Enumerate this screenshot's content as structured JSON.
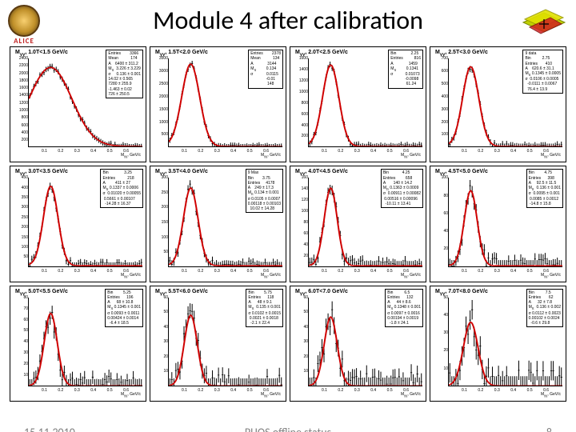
{
  "title": "Module 4 after calibration",
  "footer": {
    "date": "15.11.2010",
    "center": "PHOS offline status",
    "page": "8"
  },
  "logos": {
    "alice_label": "ALICE"
  },
  "chart_common": {
    "xlabel": "M_{γγ}, GeV/c",
    "xlim": [
      0,
      0.7
    ],
    "xticks": [
      0.1,
      0.2,
      0.3,
      0.4,
      0.5,
      0.6
    ],
    "line_color": "#d00000",
    "line_width": 1.4,
    "data_color": "#000000",
    "background": "#ffffff",
    "title_fontsize": 7,
    "tick_fontsize": 5,
    "peak_x": 0.135
  },
  "panels": [
    {
      "title": "M_{γγ}, 1.0<p_T<1.5 GeV/c",
      "ylim": [
        0,
        2400
      ],
      "ystep": 200,
      "peak_h": 0.88,
      "peak_w": 0.13,
      "tail": 0.03,
      "noise": 0.02,
      "stats": "Entries        3366\\nMean           174\\nA    6400 ± 311.2\\nM_{π}  3.226 ± 3.229\\nσ     0.136 ± 0.001\\n14.02 ± 0.565\\n7280 ± 255.9\\n-1.463 ± 0.02\\n726 ± 250.5"
    },
    {
      "title": "M_{γγ}, 1.5<p_T<2.0 GeV/c",
      "ylim": [
        0,
        3500
      ],
      "ystep": 500,
      "peak_h": 0.93,
      "peak_w": 0.055,
      "tail": 0.01,
      "noise": 0.02,
      "stats": "Entries        2378\\nMean           134\\nA             3144\\nM_{π}         0.134\\nσ            0.0115\\n              -0.01\\n               148"
    },
    {
      "title": "M_{γγ}, 2.0<p_T<2.5 GeV/c",
      "ylim": [
        0,
        1600
      ],
      "ystep": 200,
      "peak_h": 0.92,
      "peak_w": 0.05,
      "tail": 0.01,
      "noise": 0.025,
      "stats": "Bin             2.25\\nEntries          816\\nA              1459\\nM_{π}         0.1341\\nσ           0.01073\\n             -0.0098\\n              61.24"
    },
    {
      "title": "M_{γγ}, 2.5<p_T<3.0 GeV/c",
      "ylim": [
        0,
        700
      ],
      "ystep": 100,
      "peak_h": 0.9,
      "peak_w": 0.05,
      "tail": 0.01,
      "noise": 0.03,
      "stats": "9 data\\nBin          2.75\\nEntries       410\\nA    620.6 ± 31.1\\nM_{π} 0.1345 ± 0.0005\\nσ  0.0106 ± 0.0005\\n  -0.0111 ± 0.0067\\n  76.4 ± 13.9"
    },
    {
      "title": "M_{γγ}, 3.0<p_T<3.5 GeV/c",
      "ylim": [
        0,
        450
      ],
      "ystep": 50,
      "peak_h": 0.9,
      "peak_w": 0.045,
      "tail": 0.005,
      "noise": 0.04,
      "stats": "Bin              3.25\\nEntries           218\\nA         411 ± 27\\nM_{π} 0.1337 ± 0.0006\\nσ  0.01020 ± 0.00055\\n 0.5661 ± 0.00107\\n  -14.28 ± 16.37"
    },
    {
      "title": "M_{γγ}, 3.5<p_T<4.0 GeV/c",
      "ylim": [
        0,
        300
      ],
      "ystep": 50,
      "peak_h": 0.88,
      "peak_w": 0.045,
      "tail": 0.005,
      "noise": 0.05,
      "stats": "9 Max\\nBin        3.75\\nEntries     4178\\nA    249 ± 17.3\\nM_{π} 0.134 ± 0.001\\nσ 0.0105 ± 0.0007\\n0.00118 ± 0.00103\\n  10.02 ± 14.28"
    },
    {
      "title": "M_{γγ}, 4.0<p_T<4.5 GeV/c",
      "ylim": [
        0,
        160
      ],
      "ystep": 20,
      "peak_h": 0.88,
      "peak_w": 0.04,
      "tail": 0.003,
      "noise": 0.07,
      "stats": "Bin            4.25\\nEntries         658\\nA       140 ± 14.2\\nM_{π} 0.1363 ± 0.0009\\nσ  0.00911 ± 0.00082\\n 0.00516 ± 0.00096\\n  -10.11 ± 13.41"
    },
    {
      "title": "M_{γγ}, 4.5<p_T<5.0 GeV/c",
      "ylim": [
        0,
        100
      ],
      "ystep": 20,
      "peak_h": 0.85,
      "peak_w": 0.04,
      "tail": 0.003,
      "noise": 0.09,
      "stats": "Bin         4.75\\nEntries      398\\nA     92.5 ± 11.5\\nM_{π}  0.136 ± 0.001\\nσ  0.0095 ± 0.001\\n 0.0085 ± 0.0012\\n -14.8 ± 15.8"
    },
    {
      "title": "M_{γγ}, 5.0<p_T<5.5 GeV/c",
      "ylim": [
        0,
        80
      ],
      "ystep": 10,
      "peak_h": 0.82,
      "peak_w": 0.04,
      "tail": 0.002,
      "noise": 0.11,
      "stats": "Bin         5.25\\nEntries      196\\nA      68 ± 10.8\\nM_{π} 0.1345 ± 0.001\\nσ 0.0093 ± 0.0011\\n0.00424 ± 0.0014\\n  -6.4 ± 18.5"
    },
    {
      "title": "M_{γγ}, 5.5<p_T<6.0 GeV/c",
      "ylim": [
        0,
        60
      ],
      "ystep": 10,
      "peak_h": 0.8,
      "peak_w": 0.04,
      "tail": 0.002,
      "noise": 0.13,
      "stats": "Bin         5.75\\nEntries      118\\nA      48 ± 9.1\\nM_{π}  0.135 ± 0.001\\nσ 0.0102 ± 0.0015\\n 0.0021 ± 0.0018\\n  -2.1 ± 22.4"
    },
    {
      "title": "M_{γγ}, 6.0<p_T<7.0 GeV/c",
      "ylim": [
        0,
        60
      ],
      "ystep": 10,
      "peak_h": 0.78,
      "peak_w": 0.04,
      "tail": 0.002,
      "noise": 0.15,
      "stats": "Bin          6.5\\nEntries      132\\nA      44 ± 8.6\\nM_{π} 0.1348 ± 0.001\\nσ 0.0097 ± 0.0016\\n0.00194 ± 0.0019\\n  -1.8 ± 24.1"
    },
    {
      "title": "M_{γγ}, 7.0<p_T<8.0 GeV/c",
      "ylim": [
        0,
        50
      ],
      "ystep": 10,
      "peak_h": 0.72,
      "peak_w": 0.045,
      "tail": 0.002,
      "noise": 0.18,
      "stats": "Bin          7.5\\nEntries       62\\nA      32 ± 7.8\\nM_{π}  0.136 ± 0.002\\nσ 0.0112 ± 0.0023\\n0.00102 ± 0.0024\\n  -0.6 ± 29.8"
    }
  ]
}
